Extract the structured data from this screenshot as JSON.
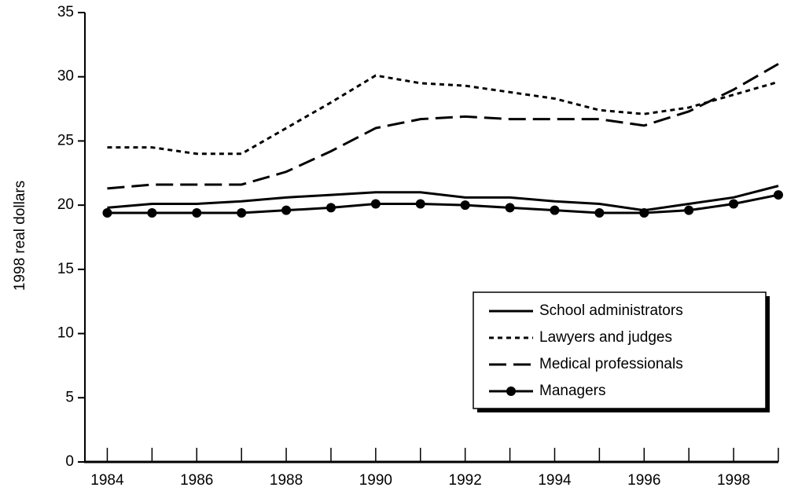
{
  "chart_data": {
    "type": "line",
    "y_label": "1998 real dollars",
    "x": [
      1984,
      1985,
      1986,
      1987,
      1988,
      1989,
      1990,
      1991,
      1992,
      1993,
      1994,
      1995,
      1996,
      1997,
      1998,
      1999
    ],
    "series": [
      {
        "name": "School administrators",
        "color": "#000000",
        "dash": "solid",
        "marker": false,
        "values": [
          19.8,
          20.1,
          20.1,
          20.3,
          20.6,
          20.8,
          21.0,
          21.0,
          20.6,
          20.6,
          20.3,
          20.1,
          19.6,
          20.1,
          20.6,
          21.5
        ]
      },
      {
        "name": "Lawyers and judges",
        "color": "#000000",
        "dash": "short",
        "marker": false,
        "values": [
          24.5,
          24.5,
          24.0,
          24.0,
          26.0,
          28.0,
          30.1,
          29.5,
          29.3,
          28.8,
          28.3,
          27.4,
          27.1,
          27.6,
          28.6,
          29.6
        ]
      },
      {
        "name": "Medical professionals",
        "color": "#000000",
        "dash": "long",
        "marker": false,
        "values": [
          21.3,
          21.6,
          21.6,
          21.6,
          22.6,
          24.2,
          26.0,
          26.7,
          26.9,
          26.7,
          26.7,
          26.7,
          26.2,
          27.3,
          29.0,
          31.0
        ]
      },
      {
        "name": "Managers",
        "color": "#000000",
        "dash": "solid",
        "marker": true,
        "values": [
          19.4,
          19.4,
          19.4,
          19.4,
          19.6,
          19.8,
          20.1,
          20.1,
          20.0,
          19.8,
          19.6,
          19.4,
          19.4,
          19.6,
          20.1,
          20.8
        ]
      }
    ],
    "xlim": [
      1983.5,
      1999
    ],
    "xticks": [
      1984,
      1986,
      1988,
      1990,
      1992,
      1994,
      1996,
      1998
    ],
    "x_minor_ticks": [
      1985,
      1987,
      1989,
      1991,
      1993,
      1995,
      1997,
      1999
    ],
    "ylim": [
      0,
      35
    ],
    "yticks": [
      0,
      5,
      10,
      15,
      20,
      25,
      30,
      35
    ],
    "grid": false,
    "legend": "lower-right"
  }
}
